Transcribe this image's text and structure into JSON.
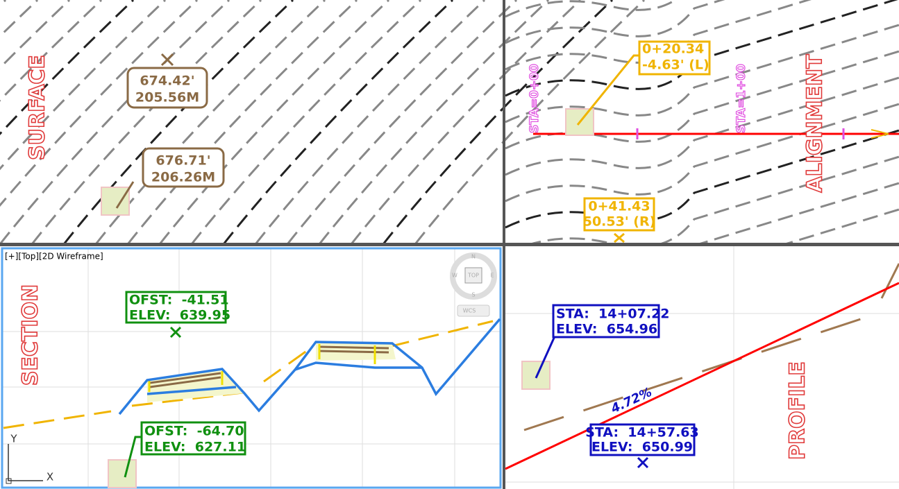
{
  "viewports": {
    "surface": {
      "title": "SURFACE",
      "labels": [
        {
          "line1": "674.42'",
          "line2": "205.56M"
        },
        {
          "line1": "676.71'",
          "line2": "206.26M"
        }
      ]
    },
    "alignment": {
      "title": "ALIGNMENT",
      "stations": [
        "STA=0+00",
        "STA=1+00"
      ],
      "labels": [
        {
          "line1": "0+20.34",
          "line2": "-4.63' (L)"
        },
        {
          "line1": "0+41.43",
          "line2": "50.53' (R)"
        }
      ]
    },
    "section": {
      "viewport_label": "[+][Top][2D Wireframe]",
      "title": "SECTION",
      "labels": [
        {
          "line1": "OFST:  -41.51",
          "line2": "ELEV:  639.95"
        },
        {
          "line1": "OFST:  -64.70",
          "line2": "ELEV:  627.11"
        }
      ],
      "viewcube": {
        "n": "N",
        "w": "W",
        "top": "TOP",
        "e": "E",
        "s": "S",
        "wcs": "WCS"
      },
      "ucs": {
        "y": "Y",
        "x": "X"
      }
    },
    "profile": {
      "title": "PROFILE",
      "grade": "4.72%",
      "labels": [
        {
          "line1": "STA:  14+07.22",
          "line2": "ELEV:  654.96"
        },
        {
          "line1": "STA:  14+57.63",
          "line2": "ELEV:  650.99"
        }
      ]
    }
  }
}
